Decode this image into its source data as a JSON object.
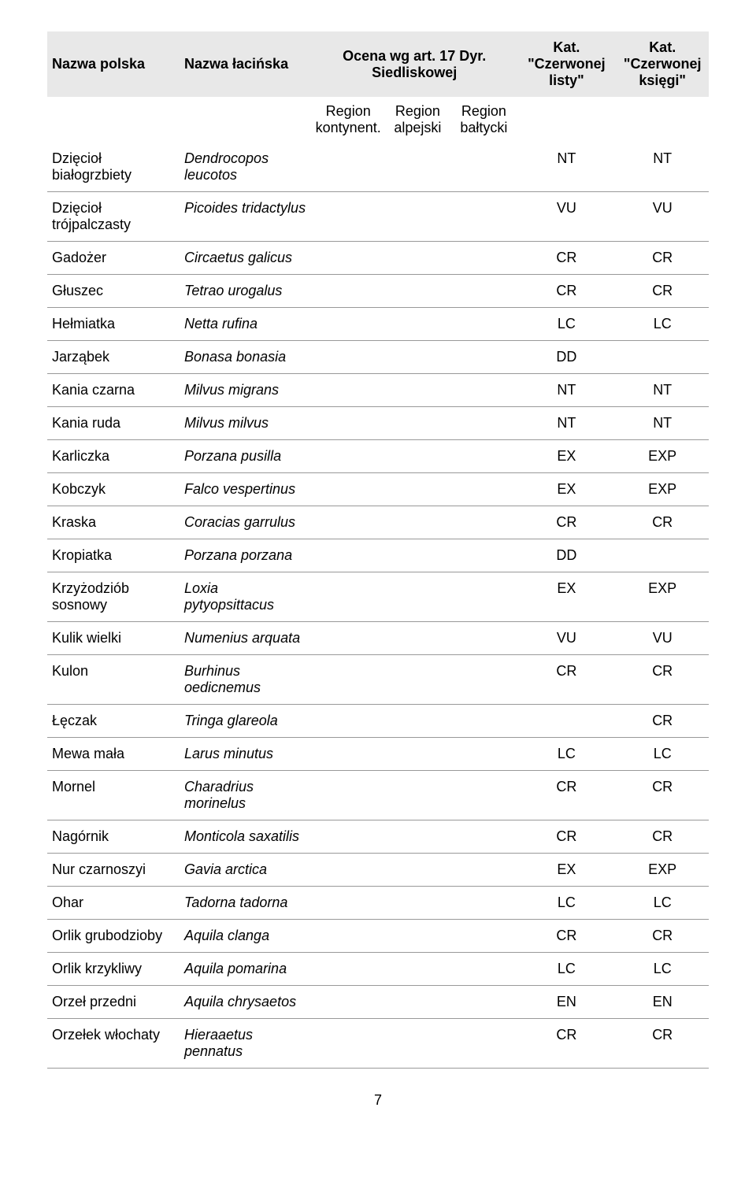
{
  "header": {
    "col_pl": "Nazwa polska",
    "col_lat": "Nazwa łacińska",
    "col_ocena": "Ocena wg art. 17 Dyr. Siedliskowej",
    "col_kat1": "Kat. \"Czerwonej listy\"",
    "col_kat2": "Kat. \"Czerwonej księgi\"",
    "sub_r1": "Region kontynent.",
    "sub_r2": "Region alpejski",
    "sub_r3": "Region bałtycki"
  },
  "rows": [
    {
      "pl": "Dzięcioł białogrzbiety",
      "lat": "Dendrocopos leucotos",
      "r1": "",
      "r2": "",
      "r3": "",
      "k1": "NT",
      "k2": "NT"
    },
    {
      "pl": "Dzięcioł trójpalczasty",
      "lat": "Picoides tridactylus",
      "r1": "",
      "r2": "",
      "r3": "",
      "k1": "VU",
      "k2": "VU"
    },
    {
      "pl": "Gadożer",
      "lat": "Circaetus galicus",
      "r1": "",
      "r2": "",
      "r3": "",
      "k1": "CR",
      "k2": "CR"
    },
    {
      "pl": "Głuszec",
      "lat": "Tetrao urogalus",
      "r1": "",
      "r2": "",
      "r3": "",
      "k1": "CR",
      "k2": "CR"
    },
    {
      "pl": "Hełmiatka",
      "lat": "Netta rufina",
      "r1": "",
      "r2": "",
      "r3": "",
      "k1": "LC",
      "k2": "LC"
    },
    {
      "pl": "Jarząbek",
      "lat": "Bonasa bonasia",
      "r1": "",
      "r2": "",
      "r3": "",
      "k1": "DD",
      "k2": ""
    },
    {
      "pl": "Kania czarna",
      "lat": "Milvus migrans",
      "r1": "",
      "r2": "",
      "r3": "",
      "k1": "NT",
      "k2": "NT"
    },
    {
      "pl": "Kania ruda",
      "lat": "Milvus milvus",
      "r1": "",
      "r2": "",
      "r3": "",
      "k1": "NT",
      "k2": "NT"
    },
    {
      "pl": "Karliczka",
      "lat": "Porzana pusilla",
      "r1": "",
      "r2": "",
      "r3": "",
      "k1": "EX",
      "k2": "EXP"
    },
    {
      "pl": "Kobczyk",
      "lat": "Falco vespertinus",
      "r1": "",
      "r2": "",
      "r3": "",
      "k1": "EX",
      "k2": "EXP"
    },
    {
      "pl": "Kraska",
      "lat": "Coracias garrulus",
      "r1": "",
      "r2": "",
      "r3": "",
      "k1": "CR",
      "k2": "CR"
    },
    {
      "pl": "Kropiatka",
      "lat": "Porzana porzana",
      "r1": "",
      "r2": "",
      "r3": "",
      "k1": "DD",
      "k2": ""
    },
    {
      "pl": "Krzyżodziób sosnowy",
      "lat": "Loxia pytyopsittacus",
      "r1": "",
      "r2": "",
      "r3": "",
      "k1": "EX",
      "k2": "EXP"
    },
    {
      "pl": "Kulik wielki",
      "lat": "Numenius arquata",
      "r1": "",
      "r2": "",
      "r3": "",
      "k1": "VU",
      "k2": "VU"
    },
    {
      "pl": "Kulon",
      "lat": "Burhinus oedicnemus",
      "r1": "",
      "r2": "",
      "r3": "",
      "k1": "CR",
      "k2": "CR"
    },
    {
      "pl": "Łęczak",
      "lat": "Tringa glareola",
      "r1": "",
      "r2": "",
      "r3": "",
      "k1": "",
      "k2": "CR"
    },
    {
      "pl": "Mewa mała",
      "lat": "Larus minutus",
      "r1": "",
      "r2": "",
      "r3": "",
      "k1": "LC",
      "k2": "LC"
    },
    {
      "pl": "Mornel",
      "lat": "Charadrius morinelus",
      "r1": "",
      "r2": "",
      "r3": "",
      "k1": "CR",
      "k2": "CR"
    },
    {
      "pl": "Nagórnik",
      "lat": "Monticola saxatilis",
      "r1": "",
      "r2": "",
      "r3": "",
      "k1": "CR",
      "k2": "CR"
    },
    {
      "pl": "Nur czarnoszyi",
      "lat": "Gavia arctica",
      "r1": "",
      "r2": "",
      "r3": "",
      "k1": "EX",
      "k2": "EXP"
    },
    {
      "pl": "Ohar",
      "lat": "Tadorna tadorna",
      "r1": "",
      "r2": "",
      "r3": "",
      "k1": "LC",
      "k2": "LC"
    },
    {
      "pl": "Orlik grubodzioby",
      "lat": "Aquila clanga",
      "r1": "",
      "r2": "",
      "r3": "",
      "k1": "CR",
      "k2": "CR"
    },
    {
      "pl": "Orlik krzykliwy",
      "lat": "Aquila pomarina",
      "r1": "",
      "r2": "",
      "r3": "",
      "k1": "LC",
      "k2": "LC"
    },
    {
      "pl": "Orzeł przedni",
      "lat": "Aquila chrysaetos",
      "r1": "",
      "r2": "",
      "r3": "",
      "k1": "EN",
      "k2": "EN"
    },
    {
      "pl": "Orzełek włochaty",
      "lat": "Hieraaetus pennatus",
      "r1": "",
      "r2": "",
      "r3": "",
      "k1": "CR",
      "k2": "CR"
    }
  ],
  "page_number": "7",
  "style": {
    "header_bg": "#e8e8e8",
    "border_color": "#999999",
    "text_color": "#000000",
    "font_size": 18
  }
}
